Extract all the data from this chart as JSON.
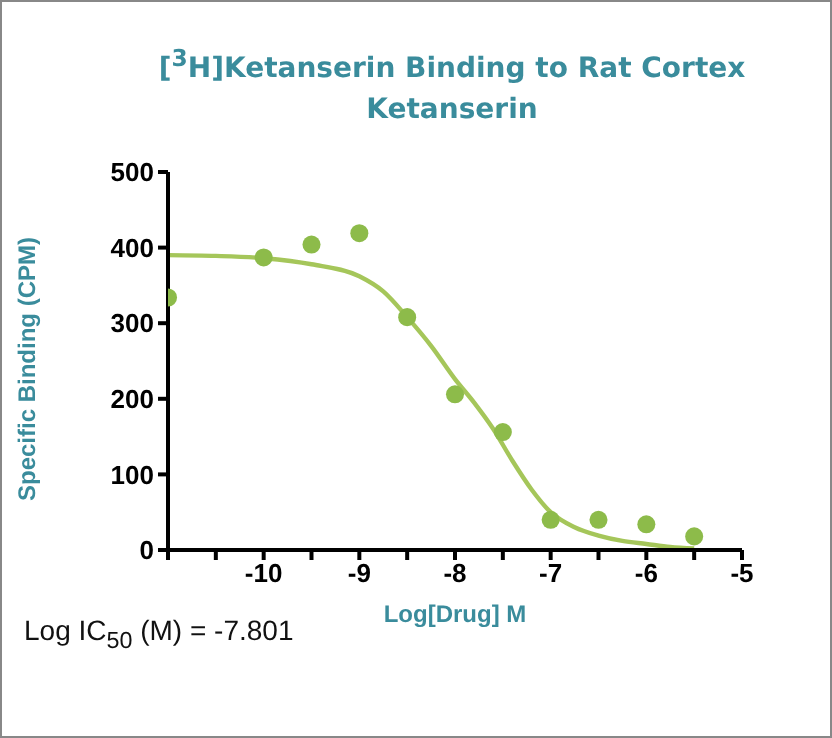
{
  "chart_data": {
    "type": "scatter",
    "title": "[$^{3}$H]Ketanserin Binding to Rat Cortex",
    "subtitle": "Ketanserin",
    "xlabel": "Log[Drug] M",
    "ylabel": "Specific Binding (CPM)",
    "annotations": [
      "Log IC$_{50}$ (M) = -7.801"
    ],
    "xlim": [
      -11,
      -5
    ],
    "xticks": [
      {
        "value": -11,
        "label": null
      },
      {
        "value": -10.5,
        "label": null
      },
      -10,
      {
        "value": -9.5,
        "label": null
      },
      -9,
      {
        "value": -8.5,
        "label": null
      },
      -8,
      {
        "value": -7.5,
        "label": null
      },
      -7,
      {
        "value": -6.5,
        "label": null
      },
      -6,
      {
        "value": -5.5,
        "label": null
      },
      -5
    ],
    "ylim": [
      0,
      500
    ],
    "yticks": [
      0,
      100,
      200,
      300,
      400,
      500
    ],
    "series": [
      {
        "marker": "circle",
        "color": "#8dbb4a",
        "x": [
          -11,
          -10,
          -9.5,
          -9,
          -8.5,
          -8,
          -7.5,
          -7,
          -6.5,
          -6,
          -5.5
        ],
        "values": [
          334,
          387,
          404,
          419,
          308,
          206,
          156,
          40,
          40,
          34,
          18
        ]
      },
      {
        "type": "line",
        "marker": "none",
        "color": "#a5c65a",
        "x": [
          -11,
          -10.5,
          -10,
          -9.5,
          -9,
          -8.75,
          -8.5,
          -8.25,
          -8,
          -7.8,
          -7.6,
          -7.4,
          -7.2,
          -7,
          -6.75,
          -6.5,
          -6.25,
          -6,
          -5.75,
          -5.5
        ],
        "values": [
          390,
          389,
          386,
          378,
          362,
          342,
          308,
          270,
          226,
          195,
          160,
          118,
          80,
          50,
          30,
          19,
          12,
          8,
          4,
          2
        ]
      }
    ]
  }
}
